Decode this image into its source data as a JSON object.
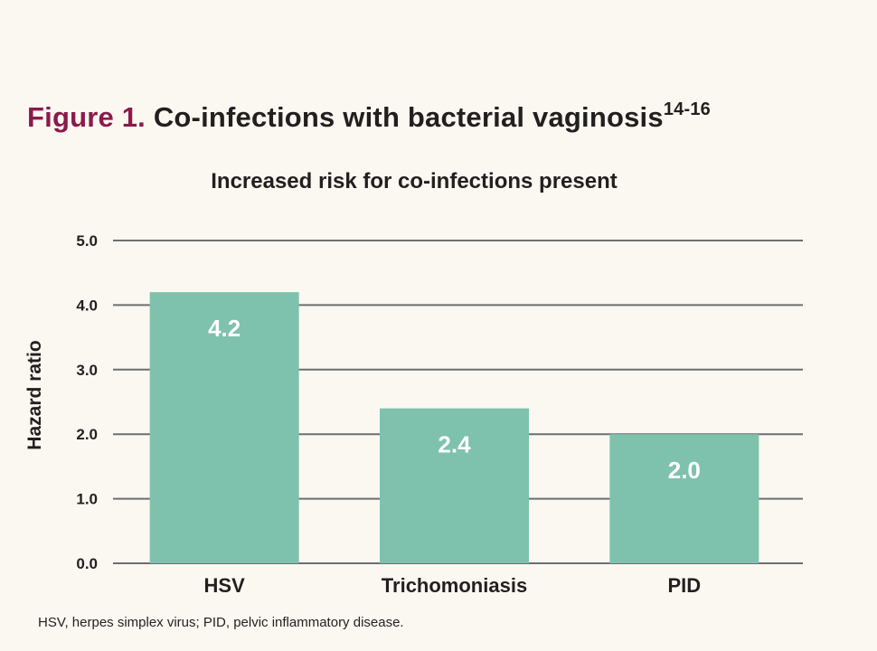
{
  "figure": {
    "label": "Figure 1.",
    "title": "Co-infections with bacterial vaginosis",
    "superscript": "14-16"
  },
  "chart_data": {
    "type": "bar",
    "title": "Increased risk for co-infections present",
    "xlabel": "",
    "ylabel": "Hazard ratio",
    "categories": [
      "HSV",
      "Trichomoniasis",
      "PID"
    ],
    "values": [
      4.2,
      2.4,
      2.0
    ],
    "data_labels": [
      "4.2",
      "2.4",
      "2.0"
    ],
    "ylim": [
      0,
      5
    ],
    "yticks": [
      0,
      1,
      2,
      3,
      4,
      5
    ],
    "ytick_labels": [
      "0.0",
      "1.0",
      "2.0",
      "3.0",
      "4.0",
      "5.0"
    ],
    "grid": true,
    "legend": "none",
    "bar_color": "#7ec2ae",
    "grid_color": "#6d6e71",
    "label_color": "#ffffff"
  },
  "footnote": "HSV, herpes simplex virus; PID, pelvic inflammatory disease."
}
